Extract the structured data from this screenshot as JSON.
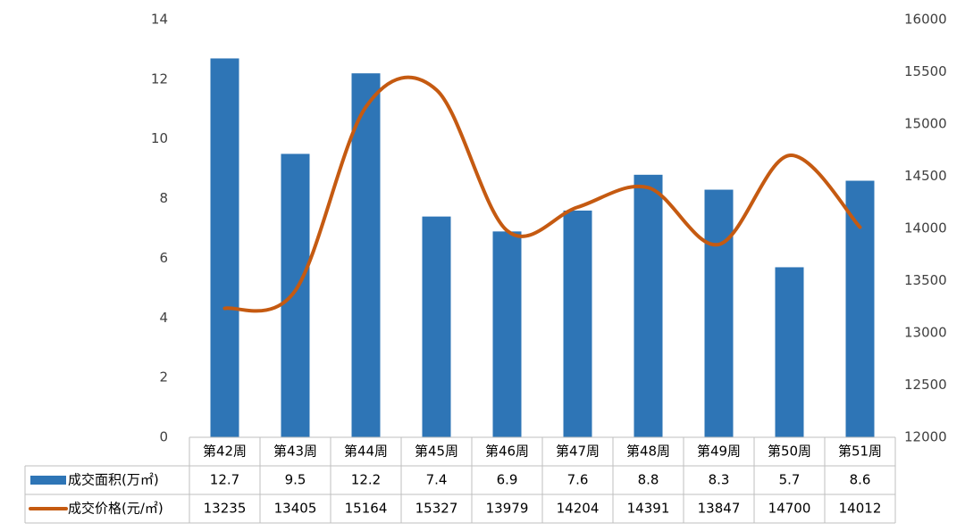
{
  "chart_data": {
    "type": "bar",
    "categories": [
      "第42周",
      "第43周",
      "第44周",
      "第45周",
      "第46周",
      "第47周",
      "第48周",
      "第49周",
      "第50周",
      "第51周"
    ],
    "series": [
      {
        "name": "成交面积(万㎡)",
        "type": "bar",
        "axis": "left",
        "color": "#2E75B6",
        "values": [
          12.7,
          9.5,
          12.2,
          7.4,
          6.9,
          7.6,
          8.8,
          8.3,
          5.7,
          8.6
        ],
        "labels": [
          "12.7",
          "9.5",
          "12.2",
          "7.4",
          "6.9",
          "7.6",
          "8.8",
          "8.3",
          "5.7",
          "8.6"
        ]
      },
      {
        "name": "成交价格(元/㎡)",
        "type": "line",
        "axis": "right",
        "smooth": true,
        "color": "#C55A11",
        "values": [
          13235,
          13405,
          15164,
          15327,
          13979,
          14204,
          14391,
          13847,
          14700,
          14012
        ],
        "labels": [
          "13235",
          "13405",
          "15164",
          "15327",
          "13979",
          "14204",
          "14391",
          "13847",
          "14700",
          "14012"
        ]
      }
    ],
    "y_left": {
      "lim": [
        0,
        14
      ],
      "ticks": [
        "0",
        "2",
        "4",
        "6",
        "8",
        "10",
        "12",
        "14"
      ]
    },
    "y_right": {
      "lim": [
        12000,
        16000
      ],
      "ticks": [
        "12000",
        "12500",
        "13000",
        "13500",
        "14000",
        "14500",
        "15000",
        "15500",
        "16000"
      ]
    },
    "data_table": true,
    "grid": false,
    "legend": "data-table"
  }
}
